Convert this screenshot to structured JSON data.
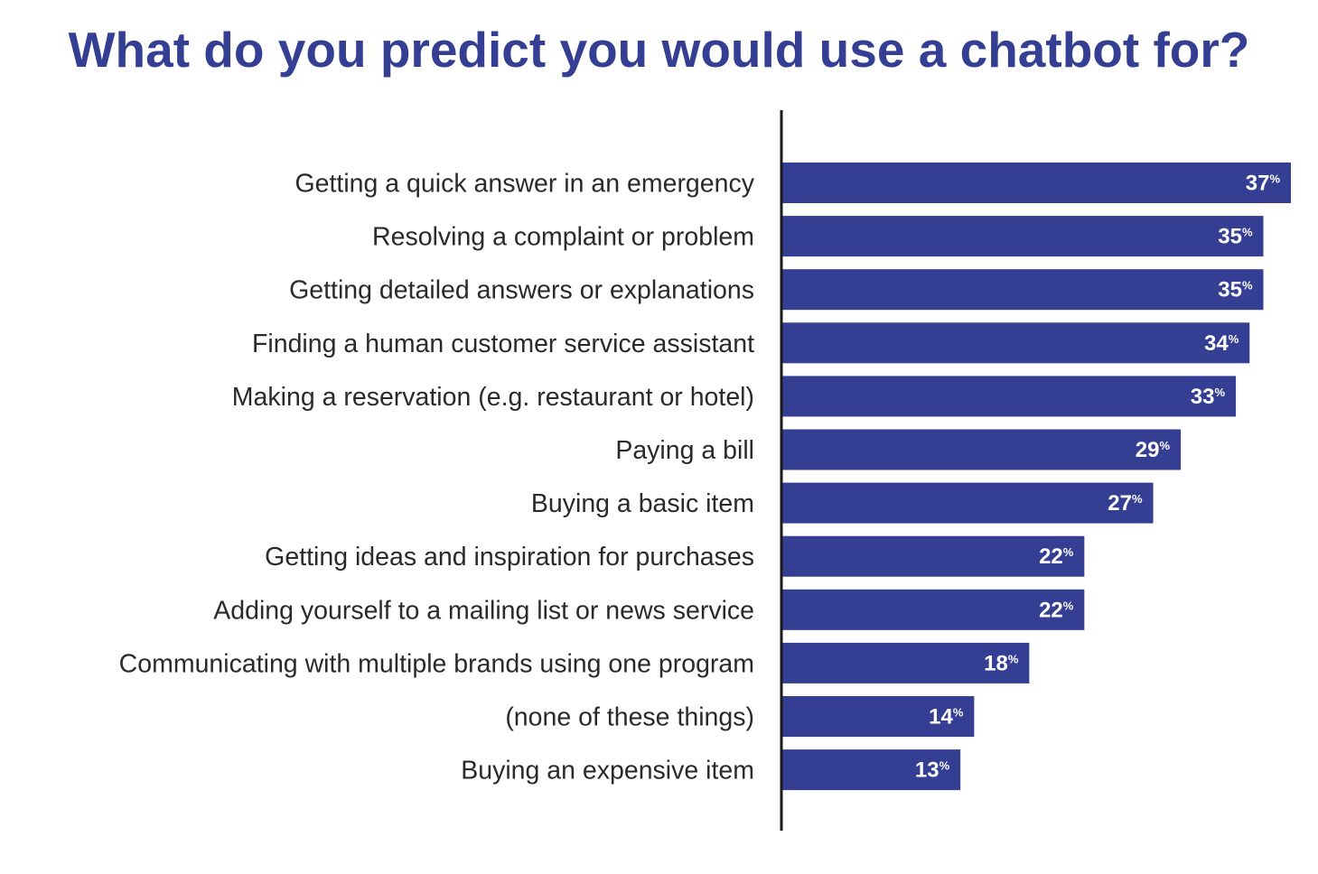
{
  "colors": {
    "bar": "#343e93",
    "title": "#343e93",
    "axis": "#1a1a1a",
    "value_label": "#ffffff"
  },
  "chart_data": {
    "type": "bar",
    "orientation": "horizontal",
    "title": "What do you predict you would use a chatbot for?",
    "categories": [
      "Getting a quick answer in an emergency",
      "Resolving a complaint or problem",
      "Getting detailed answers or explanations",
      "Finding a human customer service assistant",
      "Making a reservation (e.g. restaurant or hotel)",
      "Paying a bill",
      "Buying a basic item",
      "Getting ideas and inspiration for purchases",
      "Adding yourself to a mailing list or news service",
      "Communicating with multiple brands using one program",
      "(none of these things)",
      "Buying an expensive item"
    ],
    "values": [
      37,
      35,
      35,
      34,
      33,
      29,
      27,
      22,
      22,
      18,
      14,
      13
    ],
    "value_suffix": "%",
    "xlim": [
      0,
      37
    ],
    "grid": false,
    "legend": "none"
  }
}
